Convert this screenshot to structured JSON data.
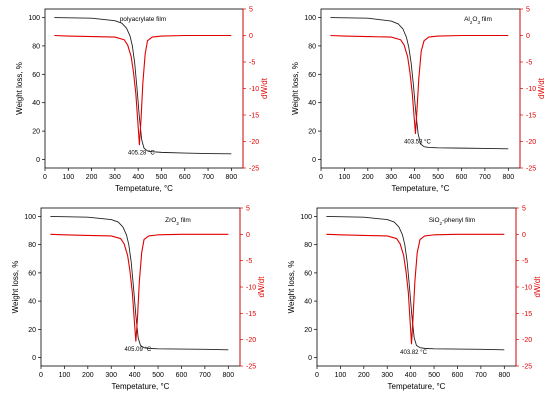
{
  "chart_data": [
    {
      "type": "line",
      "label": "polyacrylate film",
      "xlabel": "Tempetature, °C",
      "ylabel_left": "Weight loss, %",
      "ylabel_right": "dW/dt",
      "xlim": [
        0,
        850
      ],
      "ylim_left": [
        -6,
        106
      ],
      "ylim_right": [
        -25,
        5
      ],
      "xticks": [
        0,
        100,
        200,
        300,
        400,
        500,
        600,
        700,
        800
      ],
      "yticks_left": [
        0,
        20,
        40,
        60,
        80,
        100
      ],
      "yticks_right": [
        5,
        0,
        -5,
        -10,
        -15,
        -20,
        -25
      ],
      "peak": {
        "x": 405.28,
        "y": -20.6,
        "annotation": "405.28 °C"
      },
      "series": [
        {
          "color": "#222222",
          "x": [
            40,
            200,
            300,
            330,
            350,
            365,
            375,
            385,
            395,
            405,
            415,
            425,
            440,
            460,
            500,
            600,
            700,
            800
          ],
          "values": [
            100,
            99.5,
            97.8,
            96,
            92.5,
            87,
            80,
            68,
            50,
            30,
            14,
            8,
            6,
            5.5,
            5,
            4.5,
            4.2,
            4
          ]
        },
        {
          "color": "#e00000",
          "x": [
            40,
            100,
            200,
            300,
            340,
            355,
            370,
            380,
            390,
            398,
            405.28,
            412,
            420,
            430,
            440,
            460,
            500,
            600,
            700,
            800
          ],
          "values": [
            0,
            -0.1,
            -0.2,
            -0.3,
            -0.8,
            -1.8,
            -4,
            -7,
            -11,
            -16,
            -20.6,
            -16,
            -9,
            -3.5,
            -1,
            -0.3,
            -0.1,
            0,
            0,
            0
          ]
        }
      ]
    },
    {
      "type": "line",
      "label_main": "Al",
      "label_sub": "2",
      "label_main2": "O",
      "label_sub2": "3",
      "label_rest": " film",
      "xlabel": "Tempetature, °C",
      "ylabel_left": "Weight loss, %",
      "ylabel_right": "dW/dt",
      "xlim": [
        0,
        850
      ],
      "ylim_left": [
        -6,
        106
      ],
      "ylim_right": [
        -25,
        5
      ],
      "xticks": [
        0,
        100,
        200,
        300,
        400,
        500,
        600,
        700,
        800
      ],
      "yticks_left": [
        0,
        20,
        40,
        60,
        80,
        100
      ],
      "yticks_right": [
        5,
        0,
        -5,
        -10,
        -15,
        -20,
        -25
      ],
      "peak": {
        "x": 403.53,
        "y": -18.5,
        "annotation": "403.53 °C"
      },
      "series": [
        {
          "color": "#222222",
          "x": [
            40,
            200,
            300,
            330,
            350,
            365,
            375,
            385,
            395,
            405,
            415,
            425,
            440,
            460,
            500,
            600,
            700,
            800
          ],
          "values": [
            100,
            99.5,
            97.5,
            95.5,
            92,
            86,
            79,
            68,
            52,
            33,
            18,
            11,
            9,
            8.5,
            8.2,
            8,
            7.8,
            7.5
          ]
        },
        {
          "color": "#e00000",
          "x": [
            40,
            100,
            200,
            300,
            340,
            355,
            370,
            380,
            390,
            397,
            403.53,
            410,
            418,
            428,
            440,
            460,
            500,
            600,
            700,
            800
          ],
          "values": [
            0,
            -0.1,
            -0.2,
            -0.3,
            -0.8,
            -1.8,
            -4,
            -7,
            -11,
            -15,
            -18.5,
            -14,
            -8,
            -3,
            -1,
            -0.3,
            -0.1,
            0,
            0,
            0
          ]
        }
      ]
    },
    {
      "type": "line",
      "label_main": "ZrO",
      "label_sub": "2",
      "label_rest": " film",
      "xlabel": "Tempetature, °C",
      "ylabel_left": "Weight loss, %",
      "ylabel_right": "dW/dt",
      "xlim": [
        0,
        850
      ],
      "ylim_left": [
        -6,
        106
      ],
      "ylim_right": [
        -25,
        5
      ],
      "xticks": [
        0,
        100,
        200,
        300,
        400,
        500,
        600,
        700,
        800
      ],
      "yticks_left": [
        0,
        20,
        40,
        60,
        80,
        100
      ],
      "yticks_right": [
        5,
        0,
        -5,
        -10,
        -15,
        -20,
        -25
      ],
      "peak": {
        "x": 405.09,
        "y": -20.3,
        "annotation": "405.09 °C"
      },
      "series": [
        {
          "color": "#222222",
          "x": [
            40,
            200,
            300,
            330,
            350,
            365,
            375,
            385,
            395,
            405,
            415,
            425,
            440,
            460,
            500,
            600,
            700,
            800
          ],
          "values": [
            100,
            99.5,
            97.8,
            96,
            92.5,
            87,
            80,
            68,
            50,
            30,
            14,
            8.5,
            7,
            6.5,
            6.2,
            6,
            5.8,
            5.5
          ]
        },
        {
          "color": "#e00000",
          "x": [
            40,
            100,
            200,
            300,
            340,
            355,
            370,
            380,
            390,
            398,
            405.09,
            412,
            420,
            430,
            440,
            460,
            500,
            600,
            700,
            800
          ],
          "values": [
            0,
            -0.1,
            -0.2,
            -0.3,
            -0.8,
            -1.8,
            -4,
            -7,
            -11,
            -16,
            -20.3,
            -16,
            -9,
            -3.5,
            -1,
            -0.3,
            -0.1,
            0,
            0,
            0
          ]
        }
      ]
    },
    {
      "type": "line",
      "label_main": "SiO",
      "label_sub": "2",
      "label_rest": "-phenyl film",
      "xlabel": "Tempetature, °C",
      "ylabel_left": "Weight loss, %",
      "ylabel_right": "dW/dt",
      "xlim": [
        0,
        850
      ],
      "ylim_left": [
        -6,
        106
      ],
      "ylim_right": [
        -25,
        5
      ],
      "xticks": [
        0,
        100,
        200,
        300,
        400,
        500,
        600,
        700,
        800
      ],
      "yticks_left": [
        0,
        20,
        40,
        60,
        80,
        100
      ],
      "yticks_right": [
        5,
        0,
        -5,
        -10,
        -15,
        -20,
        -25
      ],
      "peak": {
        "x": 403.82,
        "y": -20.8,
        "annotation": "403.82 °C"
      },
      "series": [
        {
          "color": "#222222",
          "x": [
            40,
            200,
            300,
            330,
            350,
            365,
            375,
            385,
            395,
            405,
            415,
            425,
            440,
            460,
            500,
            600,
            700,
            800
          ],
          "values": [
            100,
            99.5,
            97.8,
            96,
            92.5,
            87,
            80,
            68,
            50,
            30,
            14,
            8.5,
            7,
            6.5,
            6.2,
            6,
            5.8,
            5.5
          ]
        },
        {
          "color": "#e00000",
          "x": [
            40,
            100,
            200,
            300,
            340,
            355,
            370,
            380,
            390,
            397,
            403.82,
            410,
            418,
            428,
            440,
            460,
            500,
            600,
            700,
            800
          ],
          "values": [
            0,
            -0.1,
            -0.2,
            -0.3,
            -0.8,
            -1.8,
            -4,
            -7,
            -11,
            -16,
            -20.8,
            -16,
            -9,
            -3.5,
            -1,
            -0.3,
            -0.1,
            0,
            0,
            0
          ]
        }
      ]
    }
  ]
}
